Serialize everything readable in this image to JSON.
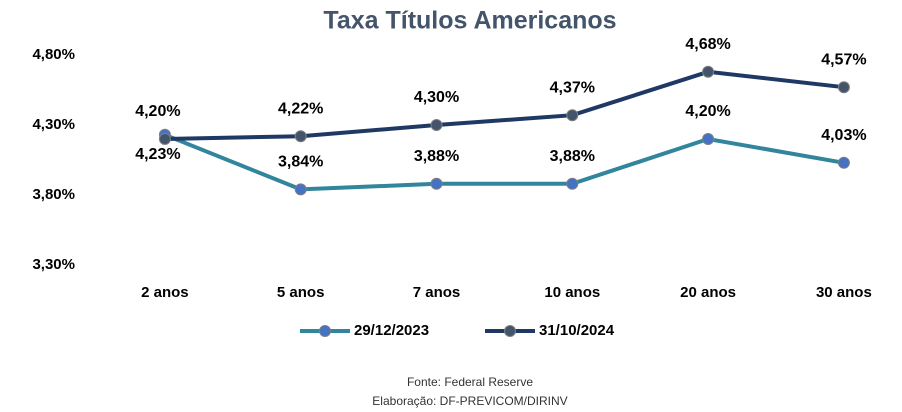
{
  "chart_data": {
    "type": "line",
    "title": "Taxa Títulos Americanos",
    "categories": [
      "2 anos",
      "5 anos",
      "7 anos",
      "10 anos",
      "20 anos",
      "30 anos"
    ],
    "series": [
      {
        "name": "29/12/2023",
        "color": "#31859c",
        "marker_color": "#4472c4",
        "values": [
          4.23,
          3.84,
          3.88,
          3.88,
          4.2,
          4.03
        ],
        "value_labels": [
          "4,23%",
          "3,84%",
          "3,88%",
          "3,88%",
          "4,20%",
          "4,03%"
        ]
      },
      {
        "name": "31/10/2024",
        "color": "#1f3864",
        "marker_color": "#44546a",
        "values": [
          4.2,
          4.22,
          4.3,
          4.37,
          4.68,
          4.57
        ],
        "value_labels": [
          "4,20%",
          "4,22%",
          "4,30%",
          "4,37%",
          "4,68%",
          "4,57%"
        ]
      }
    ],
    "ylim": [
      3.3,
      4.8
    ],
    "yticks": [
      {
        "value": 3.3,
        "label": "3,30%"
      },
      {
        "value": 3.8,
        "label": "3,80%"
      },
      {
        "value": 4.3,
        "label": "4,30%"
      },
      {
        "value": 4.8,
        "label": "4,80%"
      }
    ],
    "grid": false,
    "legend": "bottom",
    "notes": [
      "Fonte: Federal Reserve",
      "Elaboração: DF-PREVICOM/DIRINV"
    ]
  }
}
